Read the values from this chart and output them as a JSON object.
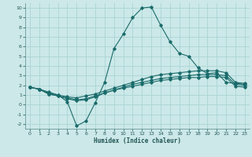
{
  "xlabel": "Humidex (Indice chaleur)",
  "bg_color": "#cce8e8",
  "grid_color": "#aad4d4",
  "line_color": "#1a6b6b",
  "xlim": [
    -0.5,
    23.5
  ],
  "ylim": [
    -2.5,
    10.5
  ],
  "xticks": [
    0,
    1,
    2,
    3,
    4,
    5,
    6,
    7,
    8,
    9,
    10,
    11,
    12,
    13,
    14,
    15,
    16,
    17,
    18,
    19,
    20,
    21,
    22,
    23
  ],
  "yticks": [
    -2,
    -1,
    0,
    1,
    2,
    3,
    4,
    5,
    6,
    7,
    8,
    9,
    10
  ],
  "series": [
    [
      1.8,
      1.6,
      1.3,
      1.0,
      0.3,
      -2.2,
      -1.7,
      0.2,
      2.3,
      5.8,
      7.3,
      9.0,
      10.0,
      10.1,
      8.2,
      6.5,
      5.3,
      5.0,
      3.8,
      3.2,
      3.3,
      2.3,
      2.2,
      2.1
    ],
    [
      1.8,
      1.6,
      1.2,
      1.0,
      0.8,
      0.7,
      0.9,
      1.1,
      1.4,
      1.7,
      2.0,
      2.3,
      2.6,
      2.9,
      3.1,
      3.2,
      3.3,
      3.4,
      3.5,
      3.5,
      3.5,
      3.3,
      2.3,
      2.2
    ],
    [
      1.8,
      1.6,
      1.1,
      0.9,
      0.7,
      0.5,
      0.6,
      0.9,
      1.2,
      1.5,
      1.8,
      2.1,
      2.3,
      2.5,
      2.7,
      2.8,
      2.9,
      3.0,
      3.1,
      3.1,
      3.1,
      3.0,
      2.1,
      2.0
    ],
    [
      1.8,
      1.6,
      1.1,
      0.9,
      0.6,
      0.4,
      0.5,
      0.8,
      1.2,
      1.5,
      1.7,
      1.9,
      2.1,
      2.3,
      2.5,
      2.6,
      2.7,
      2.8,
      2.8,
      2.9,
      2.9,
      2.8,
      1.9,
      1.8
    ]
  ]
}
